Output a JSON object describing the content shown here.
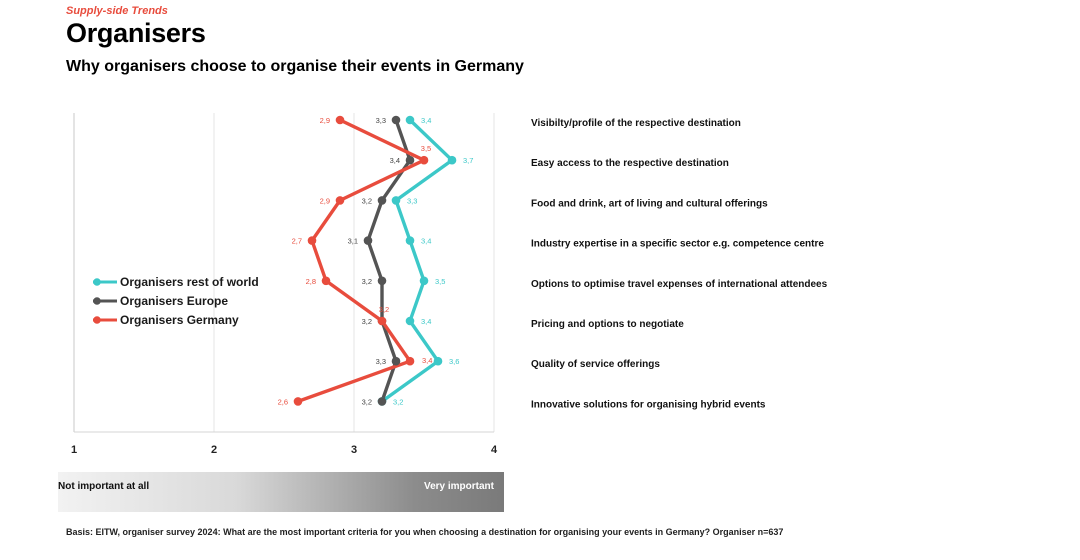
{
  "header": {
    "eyebrow": "Supply-side Trends",
    "title": "Organisers",
    "subtitle": "Why organisers choose to organise their events in Germany"
  },
  "chart_data": {
    "type": "line",
    "orientation": "horizontal-categories",
    "xlim": [
      1,
      4
    ],
    "xticks": [
      "1",
      "2",
      "3",
      "4"
    ],
    "categories": [
      "Visibilty/profile of the respective destination",
      "Easy access to the respective destination",
      "Food and drink, art of living and cultural offerings",
      "Industry expertise in a specific sector e.g. competence centre",
      "Options to optimise travel expenses of international attendees",
      "Pricing and options to negotiate",
      "Quality of service offerings",
      "Innovative solutions for organising hybrid events"
    ],
    "series": [
      {
        "name": "Organisers rest of world",
        "color": "#3cc8c8",
        "values": [
          3.4,
          3.7,
          3.3,
          3.4,
          3.5,
          3.4,
          3.6,
          3.2
        ],
        "labels": [
          "3,4",
          "3,7",
          "3,3",
          "3,4",
          "3,5",
          "3,4",
          "3,6",
          "3,2"
        ]
      },
      {
        "name": "Organisers Europe",
        "color": "#545454",
        "values": [
          3.3,
          3.4,
          3.2,
          3.1,
          3.2,
          3.2,
          3.3,
          3.2
        ],
        "labels": [
          "3,3",
          "3,4",
          "3,2",
          "3,1",
          "3,2",
          "3,2",
          "3,3",
          "3,2"
        ]
      },
      {
        "name": "Organisers Germany",
        "color": "#e84c3d",
        "values": [
          2.9,
          3.5,
          2.9,
          2.7,
          2.8,
          3.2,
          3.4,
          2.6
        ],
        "labels": [
          "2,9",
          "3,5",
          "2,9",
          "2,7",
          "2,8",
          "3,2",
          "3,4",
          "2,6"
        ]
      }
    ],
    "scale_low_label": "Not important at all",
    "scale_high_label": "Very important"
  },
  "footer": {
    "basis": "Basis: EITW, organiser survey 2024: What are the most important criteria for you when choosing a destination for organising your events in Germany? Organiser n=637"
  }
}
